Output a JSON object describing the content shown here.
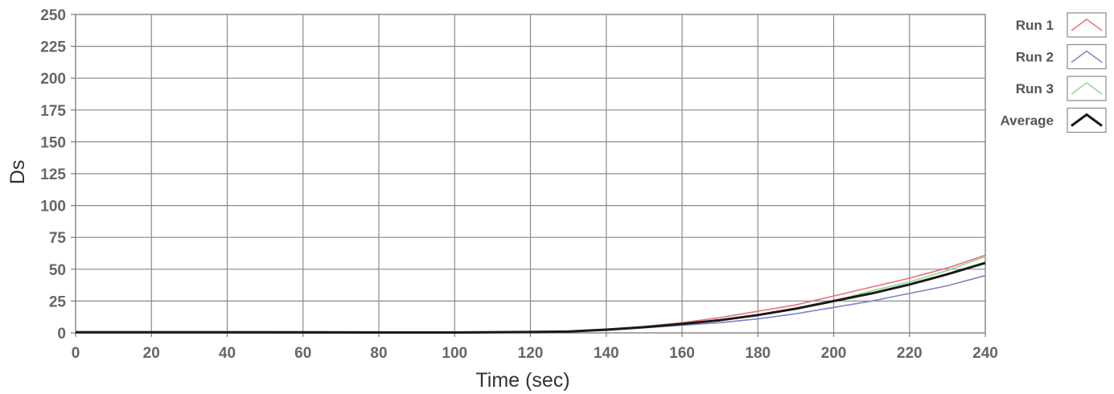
{
  "chart_data": {
    "type": "line",
    "xlabel": "Time (sec)",
    "ylabel": "Ds",
    "xlim": [
      0,
      240
    ],
    "ylim": [
      0,
      250
    ],
    "x_ticks": [
      0,
      20,
      40,
      60,
      80,
      100,
      120,
      140,
      160,
      180,
      200,
      220,
      240
    ],
    "y_ticks": [
      0,
      25,
      50,
      75,
      100,
      125,
      150,
      175,
      200,
      225,
      250
    ],
    "grid": true,
    "legend_position": "right",
    "series": [
      {
        "name": "Run 1",
        "color": "#e8707a",
        "points": [
          [
            0,
            1
          ],
          [
            60,
            1
          ],
          [
            100,
            0.5
          ],
          [
            120,
            0.5
          ],
          [
            140,
            2.5
          ],
          [
            150,
            5
          ],
          [
            160,
            8
          ],
          [
            170,
            12
          ],
          [
            180,
            17
          ],
          [
            190,
            22
          ],
          [
            200,
            29
          ],
          [
            210,
            36
          ],
          [
            220,
            43
          ],
          [
            230,
            51
          ],
          [
            240,
            61
          ]
        ]
      },
      {
        "name": "Run 2",
        "color": "#8080c8",
        "points": [
          [
            0,
            0.5
          ],
          [
            100,
            0
          ],
          [
            120,
            0.5
          ],
          [
            140,
            2
          ],
          [
            150,
            4
          ],
          [
            160,
            6
          ],
          [
            170,
            8
          ],
          [
            180,
            11
          ],
          [
            190,
            15
          ],
          [
            200,
            20
          ],
          [
            210,
            25
          ],
          [
            220,
            31
          ],
          [
            230,
            37
          ],
          [
            240,
            45
          ]
        ]
      },
      {
        "name": "Run 3",
        "color": "#90d890",
        "points": [
          [
            0,
            0.5
          ],
          [
            100,
            0
          ],
          [
            110,
            0.5
          ],
          [
            120,
            1
          ],
          [
            130,
            1.5
          ],
          [
            140,
            3
          ],
          [
            150,
            5
          ],
          [
            160,
            7
          ],
          [
            170,
            10
          ],
          [
            180,
            14
          ],
          [
            190,
            19
          ],
          [
            200,
            25
          ],
          [
            210,
            33
          ],
          [
            220,
            40
          ],
          [
            230,
            49
          ],
          [
            240,
            60
          ]
        ]
      },
      {
        "name": "Average",
        "color": "#1a1a1a",
        "points": [
          [
            0,
            0.5
          ],
          [
            100,
            0.3
          ],
          [
            120,
            0.7
          ],
          [
            130,
            1
          ],
          [
            140,
            2.5
          ],
          [
            150,
            4.5
          ],
          [
            160,
            7
          ],
          [
            170,
            10
          ],
          [
            180,
            14
          ],
          [
            190,
            19
          ],
          [
            200,
            25
          ],
          [
            210,
            31
          ],
          [
            220,
            38
          ],
          [
            230,
            46
          ],
          [
            240,
            55
          ]
        ]
      }
    ]
  }
}
